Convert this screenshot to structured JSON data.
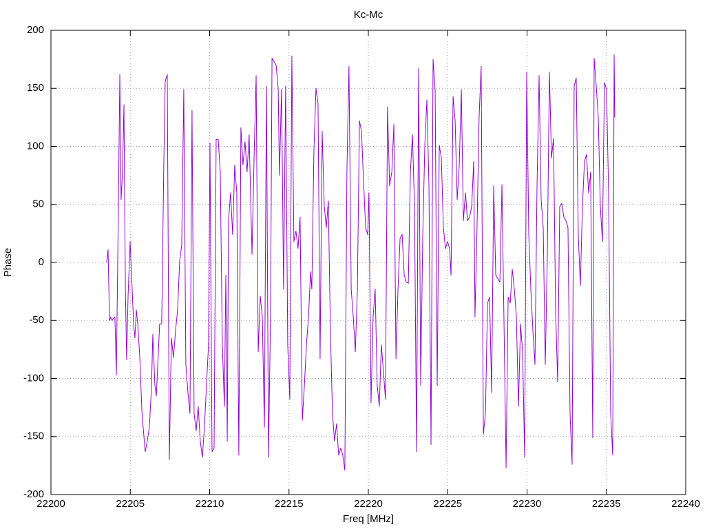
{
  "chart_data": {
    "type": "line",
    "title": "Kc-Mc",
    "xlabel": "Freq [MHz]",
    "ylabel": "Phase",
    "x": [
      22203.51,
      22203.6,
      22203.69,
      22203.77,
      22203.86,
      22203.95,
      22204.03,
      22204.12,
      22204.25,
      22204.34,
      22204.42,
      22204.51,
      22204.6,
      22204.69,
      22204.77,
      22204.86,
      22204.99,
      22205.08,
      22205.21,
      22205.29,
      22205.38,
      22205.47,
      22205.6,
      22205.73,
      22205.81,
      22205.94,
      22206.07,
      22206.2,
      22206.33,
      22206.42,
      22206.55,
      22206.64,
      22206.77,
      22206.85,
      22206.98,
      22207.11,
      22207.2,
      22207.33,
      22207.46,
      22207.59,
      22207.72,
      22207.85,
      22207.98,
      22208.11,
      22208.24,
      22208.37,
      22208.5,
      22208.63,
      22208.76,
      22208.89,
      22209.02,
      22209.15,
      22209.28,
      22209.41,
      22209.54,
      22209.67,
      22209.8,
      22209.93,
      22210.02,
      22210.15,
      22210.28,
      22210.41,
      22210.54,
      22210.67,
      22210.8,
      22210.93,
      22211.02,
      22211.11,
      22211.19,
      22211.32,
      22211.45,
      22211.58,
      22211.71,
      22211.84,
      22211.97,
      22212.1,
      22212.23,
      22212.36,
      22212.49,
      22212.67,
      22212.8,
      22212.93,
      22213.06,
      22213.19,
      22213.32,
      22213.45,
      22213.58,
      22213.71,
      22213.84,
      22213.93,
      22214.06,
      22214.19,
      22214.32,
      22214.4,
      22214.53,
      22214.66,
      22214.79,
      22214.92,
      22215.05,
      22215.18,
      22215.31,
      22215.44,
      22215.57,
      22215.7,
      22215.84,
      22215.97,
      22216.1,
      22216.23,
      22216.36,
      22216.44,
      22216.57,
      22216.7,
      22216.83,
      22216.96,
      22217.09,
      22217.22,
      22217.35,
      22217.48,
      22217.61,
      22217.74,
      22217.87,
      22218.0,
      22218.13,
      22218.26,
      22218.39,
      22218.52,
      22218.65,
      22218.78,
      22218.92,
      22219.05,
      22219.18,
      22219.31,
      22219.44,
      22219.57,
      22219.7,
      22219.83,
      22219.96,
      22220.04,
      22220.17,
      22220.3,
      22220.43,
      22220.56,
      22220.69,
      22220.82,
      22220.95,
      22221.08,
      22221.21,
      22221.34,
      22221.48,
      22221.61,
      22221.74,
      22221.87,
      22222.0,
      22222.13,
      22222.26,
      22222.39,
      22222.52,
      22222.65,
      22222.78,
      22222.91,
      22223.04,
      22223.17,
      22223.3,
      22223.43,
      22223.56,
      22223.69,
      22223.82,
      22223.95,
      22224.08,
      22224.21,
      22224.34,
      22224.47,
      22224.6,
      22224.73,
      22224.86,
      22224.99,
      22225.12,
      22225.21,
      22225.34,
      22225.47,
      22225.6,
      22225.73,
      22225.86,
      22225.99,
      22226.12,
      22226.25,
      22226.38,
      22226.51,
      22226.64,
      22226.72,
      22226.85,
      22226.98,
      22227.11,
      22227.25,
      22227.38,
      22227.51,
      22227.64,
      22227.77,
      22227.9,
      22228.03,
      22228.16,
      22228.29,
      22228.42,
      22228.55,
      22228.68,
      22228.81,
      22228.94,
      22229.07,
      22229.2,
      22229.33,
      22229.46,
      22229.59,
      22229.72,
      22229.85,
      22229.98,
      22230.11,
      22230.24,
      22230.37,
      22230.5,
      22230.63,
      22230.76,
      22230.89,
      22231.02,
      22231.15,
      22231.28,
      22231.41,
      22231.54,
      22231.67,
      22231.8,
      22231.93,
      22232.06,
      22232.19,
      22232.32,
      22232.45,
      22232.58,
      22232.71,
      22232.84,
      22232.97,
      22233.1,
      22233.23,
      22233.36,
      22233.49,
      22233.62,
      22233.75,
      22233.88,
      22234.01,
      22234.14,
      22234.23,
      22234.36,
      22234.49,
      22234.62,
      22234.75,
      22234.88,
      22235.01,
      22235.14,
      22235.27,
      22235.4,
      22235.49,
      22235.53
    ],
    "series": [
      {
        "color": "#9400d3",
        "values": [
          0,
          11,
          -50,
          -47,
          -50,
          -48,
          -47,
          -97,
          48,
          162,
          54,
          78,
          136,
          -23,
          -84,
          -29,
          18,
          -11,
          -53,
          -65,
          -41,
          -53,
          -82,
          -128,
          -142,
          -163,
          -154,
          -142,
          -109,
          -62,
          -106,
          -115,
          -77,
          -53,
          -53,
          84,
          156,
          162,
          -170,
          -65,
          -82,
          -59,
          -41,
          1,
          15,
          149,
          -88,
          -112,
          -130,
          131,
          -130,
          -145,
          -124,
          -154,
          -168,
          -142,
          -106,
          -71,
          103,
          -163,
          -160,
          106,
          106,
          78,
          -71,
          -124,
          -11,
          -154,
          36,
          60,
          24,
          84,
          60,
          -166,
          116,
          84,
          104,
          78,
          110,
          7,
          90,
          161,
          -77,
          -29,
          -47,
          -142,
          152,
          -168,
          -41,
          176,
          173,
          170,
          149,
          75,
          149,
          -23,
          152,
          -71,
          -118,
          178,
          18,
          27,
          12,
          39,
          -136,
          -106,
          -71,
          -47,
          -8,
          -23,
          96,
          150,
          137,
          -83,
          113,
          49,
          30,
          53,
          -59,
          -130,
          -154,
          -139,
          -166,
          -160,
          -166,
          -179,
          78,
          169,
          -23,
          -47,
          -77,
          -23,
          122,
          113,
          69,
          30,
          24,
          60,
          -121,
          -47,
          -23,
          -106,
          -124,
          -71,
          -94,
          -118,
          134,
          66,
          78,
          119,
          -83,
          -23,
          21,
          24,
          -11,
          -17,
          -18,
          78,
          110,
          48,
          -163,
          167,
          -106,
          24,
          101,
          140,
          66,
          -157,
          175,
          149,
          -106,
          101,
          90,
          30,
          12,
          18,
          12,
          -11,
          143,
          122,
          54,
          84,
          149,
          36,
          60,
          36,
          39,
          48,
          87,
          -47,
          30,
          125,
          169,
          -148,
          -130,
          -35,
          -30,
          -112,
          66,
          -11,
          -14,
          -17,
          67,
          -53,
          -177,
          -30,
          -35,
          -6,
          -23,
          -47,
          -124,
          -53,
          -77,
          -168,
          164,
          24,
          -23,
          -59,
          -88,
          66,
          161,
          54,
          30,
          -88,
          7,
          164,
          90,
          107,
          -41,
          -103,
          48,
          51,
          39,
          36,
          30,
          -130,
          -174,
          152,
          159,
          24,
          -20,
          48,
          87,
          93,
          60,
          78,
          -151,
          176,
          152,
          125,
          48,
          18,
          155,
          149,
          60,
          -130,
          -166,
          179,
          125
        ]
      }
    ],
    "xlim": [
      22200,
      22240
    ],
    "xticks": [
      22200,
      22205,
      22210,
      22215,
      22220,
      22225,
      22230,
      22235,
      22240
    ],
    "ylim": [
      -200,
      200
    ],
    "yticks": [
      -200,
      -150,
      -100,
      -50,
      0,
      50,
      100,
      150,
      200
    ],
    "grid": true
  }
}
